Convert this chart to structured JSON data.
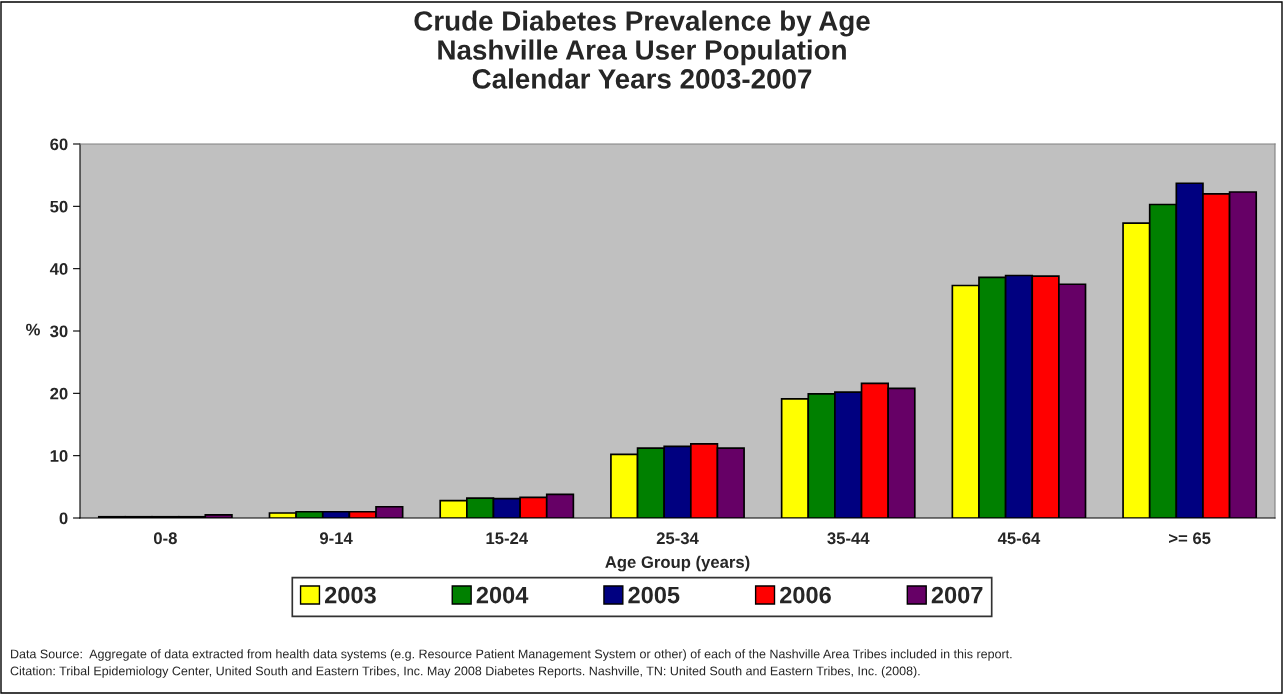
{
  "chart_data": {
    "type": "bar",
    "title": "Crude Diabetes Prevalence by Age\nNashville Area User Population\nCalendar Years 2003-2007",
    "xlabel": "Age Group (years)",
    "ylabel": "%",
    "categories": [
      "0-8",
      "9-14",
      "15-24",
      "25-34",
      "35-44",
      "45-64",
      ">= 65"
    ],
    "series": [
      {
        "name": "2003",
        "color": "#ffff00",
        "values": [
          0.2,
          0.8,
          2.8,
          10.2,
          19.1,
          37.3,
          47.3
        ]
      },
      {
        "name": "2004",
        "color": "#008000",
        "values": [
          0.2,
          1.0,
          3.2,
          11.2,
          19.9,
          38.6,
          50.3
        ]
      },
      {
        "name": "2005",
        "color": "#000080",
        "values": [
          0.2,
          1.0,
          3.1,
          11.5,
          20.2,
          38.9,
          53.7
        ]
      },
      {
        "name": "2006",
        "color": "#ff0000",
        "values": [
          0.2,
          1.0,
          3.3,
          11.9,
          21.6,
          38.8,
          52.0
        ]
      },
      {
        "name": "2007",
        "color": "#660066",
        "values": [
          0.5,
          1.8,
          3.8,
          11.2,
          20.8,
          37.5,
          52.3
        ]
      }
    ],
    "ylim": [
      0,
      60
    ],
    "yticks": [
      0,
      10,
      20,
      30,
      40,
      50,
      60
    ],
    "grid": false,
    "legend": "bottom",
    "annotations": [
      "Data Source:  Aggregate of data extracted from health data systems (e.g. Resource Patient Management System or other) of each of the Nashville Area Tribes included in this report.",
      "Citation: Tribal Epidemiology Center, United South and Eastern Tribes, Inc. May 2008 Diabetes Reports. Nashville, TN: United South and Eastern Tribes, Inc. (2008)."
    ]
  }
}
